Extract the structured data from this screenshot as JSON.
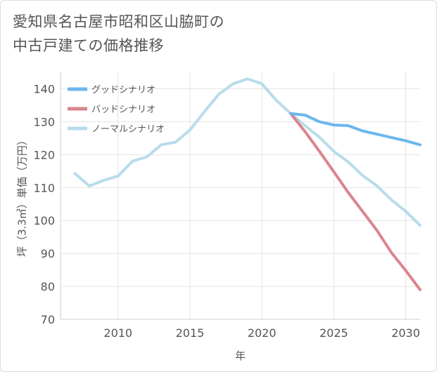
{
  "title_lines": [
    "愛知県名古屋市昭和区山脇町の",
    "中古戸建ての価格推移"
  ],
  "chart_data": {
    "type": "line",
    "title": "愛知県名古屋市昭和区山脇町の中古戸建ての価格推移",
    "xlabel": "年",
    "ylabel": "坪（3.3㎡）単価（万円）",
    "xlim": [
      2006,
      2031
    ],
    "ylim": [
      70,
      145
    ],
    "xticks": [
      2010,
      2015,
      2020,
      2025,
      2030
    ],
    "yticks": [
      70,
      80,
      90,
      100,
      110,
      120,
      130,
      140
    ],
    "grid": true,
    "legend_position": "top-left",
    "series": [
      {
        "name": "グッドシナリオ",
        "color": "#6cb7ee",
        "x": [
          2022,
          2023,
          2024,
          2025,
          2026,
          2027,
          2028,
          2029,
          2030,
          2031
        ],
        "y": [
          132.5,
          132,
          130,
          129,
          128.8,
          127.2,
          126.2,
          125.2,
          124.2,
          123
        ]
      },
      {
        "name": "バッドシナリオ",
        "color": "#d9868c",
        "x": [
          2022,
          2023,
          2024,
          2025,
          2026,
          2027,
          2028,
          2029,
          2030,
          2031
        ],
        "y": [
          132.5,
          127,
          121,
          114.8,
          108.5,
          102.8,
          97,
          90.3,
          84.8,
          79
        ]
      },
      {
        "name": "ノーマルシナリオ",
        "color": "#b8dcea",
        "x": [
          2007,
          2008,
          2009,
          2010,
          2011,
          2012,
          2013,
          2014,
          2015,
          2016,
          2017,
          2018,
          2019,
          2020,
          2021,
          2022,
          2023,
          2024,
          2025,
          2026,
          2027,
          2028,
          2029,
          2030,
          2031
        ],
        "y": [
          114.3,
          110.5,
          112.2,
          113.5,
          118,
          119.3,
          123,
          123.8,
          127.5,
          133,
          138.3,
          141.5,
          143,
          141.5,
          136.5,
          132.5,
          128.8,
          125.3,
          121,
          117.8,
          113.7,
          110.5,
          106.3,
          102.8,
          98.5
        ]
      }
    ]
  }
}
